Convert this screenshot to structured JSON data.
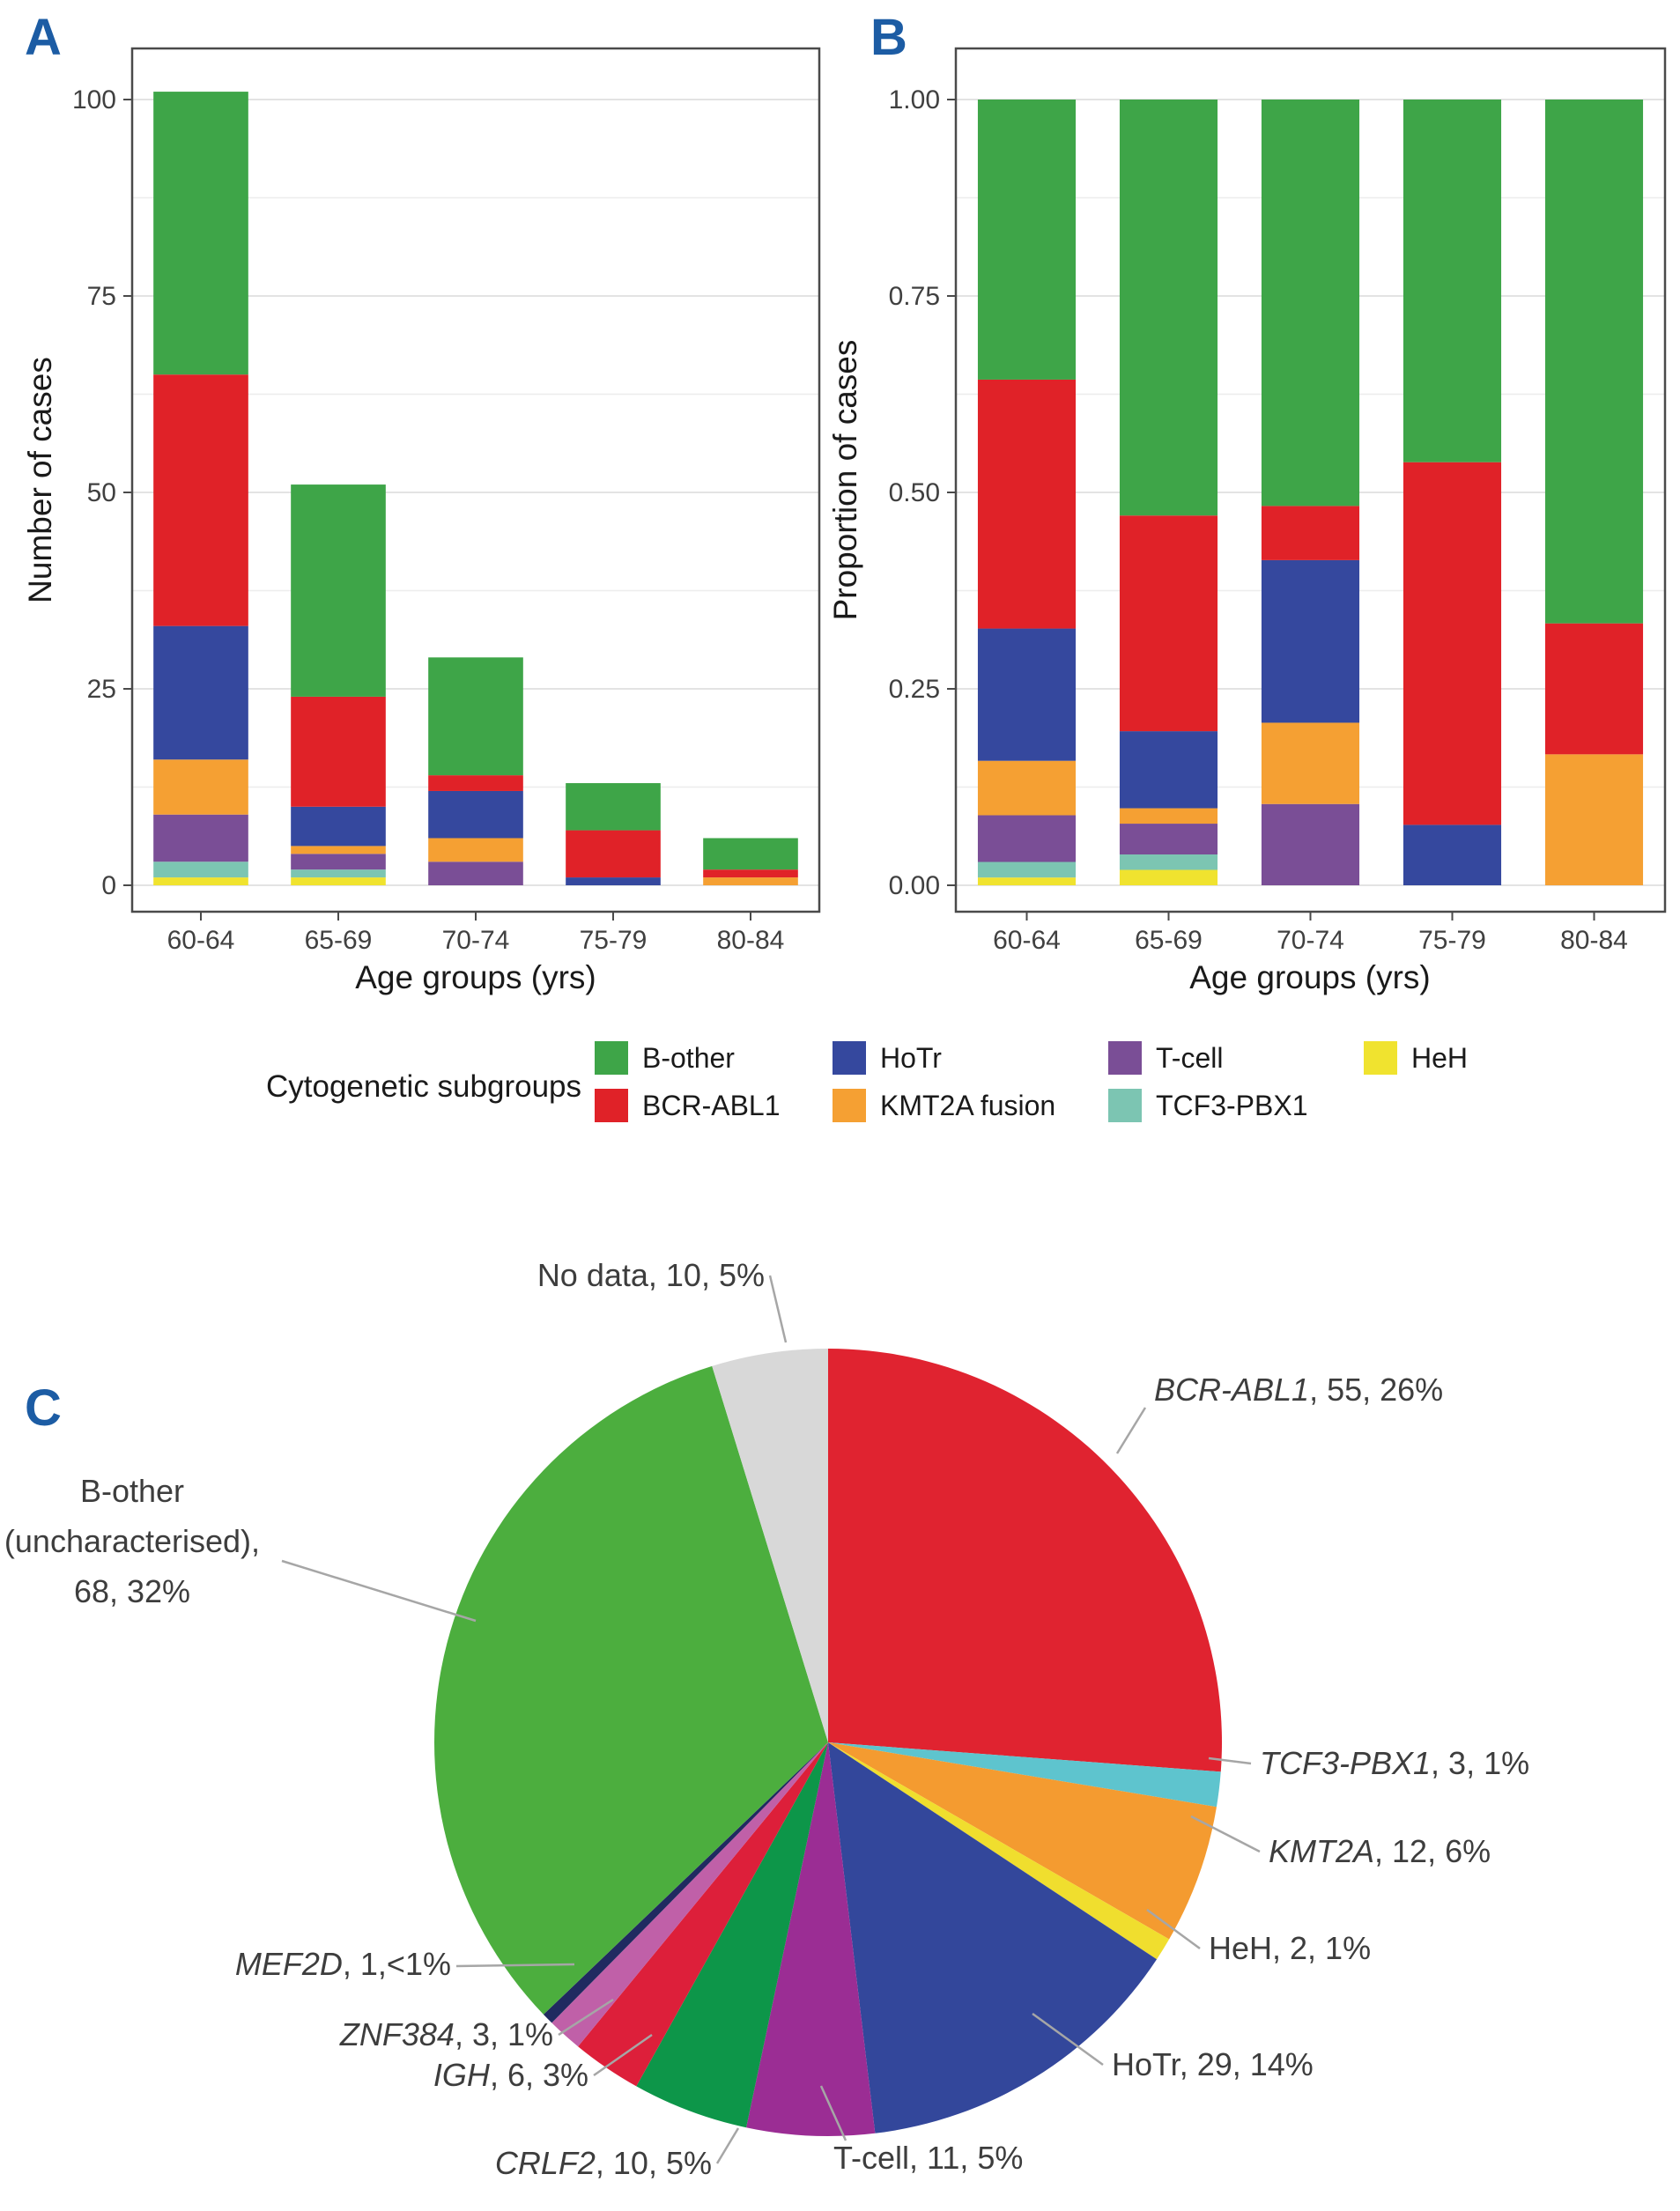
{
  "panels": {
    "a_label": "A",
    "b_label": "B",
    "c_label": "C"
  },
  "legend": {
    "title": "Cytogenetic subgroups",
    "items": [
      {
        "label": "B-other",
        "color": "#3EA548"
      },
      {
        "label": "BCR-ABL1",
        "color": "#E02228"
      },
      {
        "label": "HoTr",
        "color": "#35489E"
      },
      {
        "label": "KMT2A fusion",
        "color": "#F5A033"
      },
      {
        "label": "T-cell",
        "color": "#7A4E96"
      },
      {
        "label": "TCF3-PBX1",
        "color": "#7CC5B2"
      },
      {
        "label": "HeH",
        "color": "#F0E32F"
      }
    ]
  },
  "chart_data": [
    {
      "id": "A",
      "type": "bar",
      "stacked": true,
      "title": "",
      "xlabel": "Age groups (yrs)",
      "ylabel": "Number of cases",
      "categories": [
        "60-64",
        "65-69",
        "70-74",
        "75-79",
        "80-84"
      ],
      "yticks": [
        0,
        25,
        50,
        75,
        100
      ],
      "ytick_labels": [
        "0",
        "25",
        "50",
        "75",
        "100"
      ],
      "ylim": [
        0,
        106
      ],
      "grid": true,
      "series": [
        {
          "name": "HeH",
          "color": "#F0E32F",
          "values": [
            1,
            1,
            0,
            0,
            0
          ]
        },
        {
          "name": "TCF3-PBX1",
          "color": "#7CC5B2",
          "values": [
            2,
            1,
            0,
            0,
            0
          ]
        },
        {
          "name": "T-cell",
          "color": "#7A4E96",
          "values": [
            6,
            2,
            3,
            0,
            0
          ]
        },
        {
          "name": "KMT2A fusion",
          "color": "#F5A033",
          "values": [
            7,
            1,
            3,
            0,
            1
          ]
        },
        {
          "name": "HoTr",
          "color": "#35489E",
          "values": [
            17,
            5,
            6,
            1,
            0
          ]
        },
        {
          "name": "BCR-ABL1",
          "color": "#E02228",
          "values": [
            32,
            14,
            2,
            6,
            1
          ]
        },
        {
          "name": "B-other",
          "color": "#3EA548",
          "values": [
            36,
            27,
            15,
            6,
            4
          ]
        }
      ],
      "totals": [
        101,
        51,
        29,
        13,
        6
      ]
    },
    {
      "id": "B",
      "type": "bar",
      "stacked": true,
      "normalized": true,
      "note": "proportions computed from panel A counts per age group",
      "xlabel": "Age groups (yrs)",
      "ylabel": "Proportion of cases",
      "categories": [
        "60-64",
        "65-69",
        "70-74",
        "75-79",
        "80-84"
      ],
      "yticks": [
        0,
        0.25,
        0.5,
        0.75,
        1.0
      ],
      "ytick_labels": [
        "0.00",
        "0.25",
        "0.50",
        "0.75",
        "1.00"
      ],
      "ylim": [
        0,
        1.06
      ],
      "grid": true
    },
    {
      "id": "C",
      "type": "pie",
      "total": 210,
      "start_angle_deg": 0,
      "direction": "clockwise",
      "slices": [
        {
          "name": "BCR-ABL1",
          "value": 55,
          "suffix": ", 55, 26%",
          "italic": true,
          "color": "#E02330"
        },
        {
          "name": "TCF3-PBX1",
          "value": 3,
          "suffix": ", 3, 1%",
          "italic": true,
          "color": "#5EC4CE"
        },
        {
          "name": "KMT2A",
          "value": 12,
          "suffix": ", 12, 6%",
          "italic": true,
          "color": "#F49B30"
        },
        {
          "name": "HeH",
          "value": 2,
          "suffix": ", 2, 1%",
          "italic": false,
          "color": "#F0DE2E"
        },
        {
          "name": "HoTr",
          "value": 29,
          "suffix": ", 29, 14%",
          "italic": false,
          "color": "#33479B"
        },
        {
          "name": "T-cell",
          "value": 11,
          "suffix": ", 11, 5%",
          "italic": false,
          "color": "#9B2D94"
        },
        {
          "name": "CRLF2",
          "value": 10,
          "suffix": ", 10, 5%",
          "italic": true,
          "color": "#0D9649"
        },
        {
          "name": "IGH",
          "value": 6,
          "suffix": ", 6, 3%",
          "italic": true,
          "color": "#DD1F3A"
        },
        {
          "name": "ZNF384",
          "value": 3,
          "suffix": ", 3, 1%",
          "italic": true,
          "color": "#C060A8"
        },
        {
          "name": "MEF2D",
          "value": 1,
          "suffix": ", 1,<1%",
          "italic": true,
          "color": "#202A60"
        },
        {
          "name": "B-other (uncharacterised)",
          "value": 68,
          "suffix": ", 68, 32%",
          "italic": false,
          "color": "#4CAE3E",
          "label_lines": [
            "B-other",
            "(uncharacterised),",
            "68, 32%"
          ]
        },
        {
          "name": "No data",
          "value": 10,
          "suffix": ", 10, 5%",
          "italic": false,
          "color": "#D8D8D8"
        }
      ]
    }
  ]
}
